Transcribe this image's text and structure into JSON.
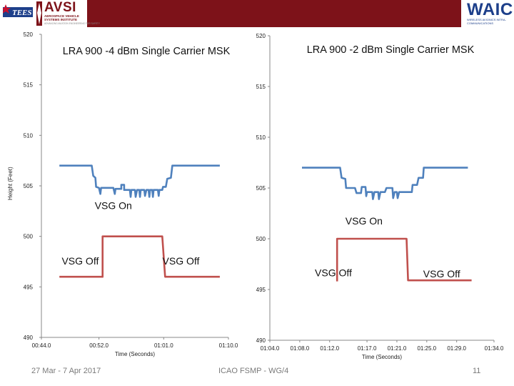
{
  "header": {
    "left_logo_emblem": "TEES",
    "left_logo_title": "AVSI",
    "left_logo_sub1": "AEROSPACE VEHICLE",
    "left_logo_sub2": "SYSTEMS INSTITUTE",
    "left_logo_tagline": "ADVANCING AVIATION ENGINEERING FOR SAFETY",
    "right_logo_title": "WAIC",
    "right_logo_sub": "WIRELESS AVIONICS INTRA-COMMUNICATIONS",
    "band_color": "#7d1219"
  },
  "footer": {
    "date": "27 Mar - 7 Apr 2017",
    "meeting": "ICAO FSMP - WG/4",
    "page": "11"
  },
  "colors": {
    "height_series": "#4f81bd",
    "vsg_series": "#c0504d",
    "axis": "#888888"
  },
  "chart_data": [
    {
      "type": "line",
      "title": "LRA 900 -4 dBm Single Carrier MSK",
      "ylabel": "Height (Feet)",
      "xlabel": "Time (Seconds)",
      "ylim": [
        490,
        520
      ],
      "yticks": [
        520,
        515,
        510,
        505,
        500,
        495,
        490
      ],
      "xlim": [
        0,
        26
      ],
      "xticks": [
        {
          "x": 0,
          "label": "00:44.0"
        },
        {
          "x": 8,
          "label": "00:52.0"
        },
        {
          "x": 17,
          "label": "01:01.0"
        },
        {
          "x": 26,
          "label": "01:10.0"
        }
      ],
      "series": [
        {
          "values": [
            [
              2.5,
              507.0
            ],
            [
              7.0,
              507.0
            ],
            [
              7.2,
              506.0
            ],
            [
              7.5,
              505.8
            ],
            [
              7.6,
              504.9
            ],
            [
              8.0,
              504.8
            ],
            [
              8.2,
              504.2
            ],
            [
              8.3,
              504.8
            ],
            [
              10.0,
              504.8
            ],
            [
              10.2,
              504.2
            ],
            [
              10.3,
              504.7
            ],
            [
              11.1,
              504.7
            ],
            [
              11.1,
              505.1
            ],
            [
              11.5,
              505.1
            ],
            [
              11.5,
              504.6
            ],
            [
              12.3,
              504.6
            ],
            [
              12.4,
              503.9
            ],
            [
              12.5,
              504.6
            ],
            [
              13.0,
              504.6
            ],
            [
              13.1,
              503.9
            ],
            [
              13.3,
              504.6
            ],
            [
              13.6,
              504.6
            ],
            [
              13.7,
              503.9
            ],
            [
              13.8,
              504.6
            ],
            [
              14.3,
              504.6
            ],
            [
              14.4,
              504.0
            ],
            [
              14.6,
              504.6
            ],
            [
              14.9,
              504.6
            ],
            [
              15.0,
              503.9
            ],
            [
              15.1,
              504.6
            ],
            [
              15.4,
              504.6
            ],
            [
              15.5,
              503.9
            ],
            [
              15.6,
              504.6
            ],
            [
              16.2,
              504.6
            ],
            [
              16.3,
              504.0
            ],
            [
              16.4,
              504.6
            ],
            [
              16.8,
              504.6
            ],
            [
              16.9,
              504.9
            ],
            [
              17.3,
              504.9
            ],
            [
              17.5,
              505.7
            ],
            [
              18.0,
              505.8
            ],
            [
              18.2,
              507.0
            ],
            [
              24.8,
              507.0
            ]
          ]
        },
        {
          "values": [
            [
              2.5,
              496.0
            ],
            [
              8.5,
              496.0
            ],
            [
              8.5,
              500.0
            ],
            [
              16.8,
              500.0
            ],
            [
              17.2,
              496.0
            ],
            [
              24.8,
              496.0
            ]
          ]
        }
      ],
      "annotations": [
        {
          "text": "VSG On",
          "x": 10.0,
          "y": 502.7
        },
        {
          "text": "VSG Off",
          "x": 5.4,
          "y": 497.2
        },
        {
          "text": "VSG Off",
          "x": 19.4,
          "y": 497.2
        }
      ]
    },
    {
      "type": "line",
      "title": "LRA 900 -2 dBm Single Carrier MSK",
      "ylabel": "",
      "xlabel": "Time (Seconds)",
      "ylim": [
        490,
        520
      ],
      "yticks": [
        520,
        515,
        510,
        505,
        500,
        495,
        490
      ],
      "xlim": [
        0,
        30
      ],
      "xticks": [
        {
          "x": 0,
          "label": "01:04.0"
        },
        {
          "x": 4,
          "label": "01:08.0"
        },
        {
          "x": 8,
          "label": "01:12.0"
        },
        {
          "x": 13,
          "label": "01:17.0"
        },
        {
          "x": 17,
          "label": "01:21.0"
        },
        {
          "x": 21,
          "label": "01:25.0"
        },
        {
          "x": 25,
          "label": "01:29.0"
        },
        {
          "x": 30,
          "label": "01:34.0"
        }
      ],
      "series": [
        {
          "values": [
            [
              4.3,
              507.0
            ],
            [
              9.4,
              507.0
            ],
            [
              9.6,
              506.0
            ],
            [
              10.1,
              505.9
            ],
            [
              10.2,
              505.0
            ],
            [
              11.4,
              505.0
            ],
            [
              11.6,
              504.5
            ],
            [
              12.2,
              504.5
            ],
            [
              12.3,
              505.1
            ],
            [
              12.8,
              505.1
            ],
            [
              12.9,
              504.2
            ],
            [
              13.0,
              504.6
            ],
            [
              13.7,
              504.6
            ],
            [
              13.8,
              503.9
            ],
            [
              14.0,
              504.6
            ],
            [
              14.5,
              504.6
            ],
            [
              14.6,
              503.9
            ],
            [
              14.8,
              504.6
            ],
            [
              15.4,
              504.6
            ],
            [
              15.6,
              505.0
            ],
            [
              16.4,
              505.0
            ],
            [
              16.5,
              504.0
            ],
            [
              16.7,
              504.6
            ],
            [
              17.0,
              504.6
            ],
            [
              17.1,
              504.0
            ],
            [
              17.3,
              504.6
            ],
            [
              19.0,
              504.6
            ],
            [
              19.1,
              505.3
            ],
            [
              19.7,
              505.3
            ],
            [
              19.9,
              506.0
            ],
            [
              20.5,
              506.0
            ],
            [
              20.6,
              507.0
            ],
            [
              26.5,
              507.0
            ]
          ]
        },
        {
          "values": [
            [
              9.0,
              495.8
            ],
            [
              9.0,
              500.0
            ],
            [
              18.3,
              500.0
            ],
            [
              18.5,
              495.9
            ],
            [
              27.0,
              495.9
            ]
          ]
        }
      ],
      "annotations": [
        {
          "text": "VSG On",
          "x": 12.6,
          "y": 501.4
        },
        {
          "text": "VSG Off",
          "x": 8.5,
          "y": 496.3
        },
        {
          "text": "VSG Off",
          "x": 23.0,
          "y": 496.2
        }
      ]
    }
  ]
}
